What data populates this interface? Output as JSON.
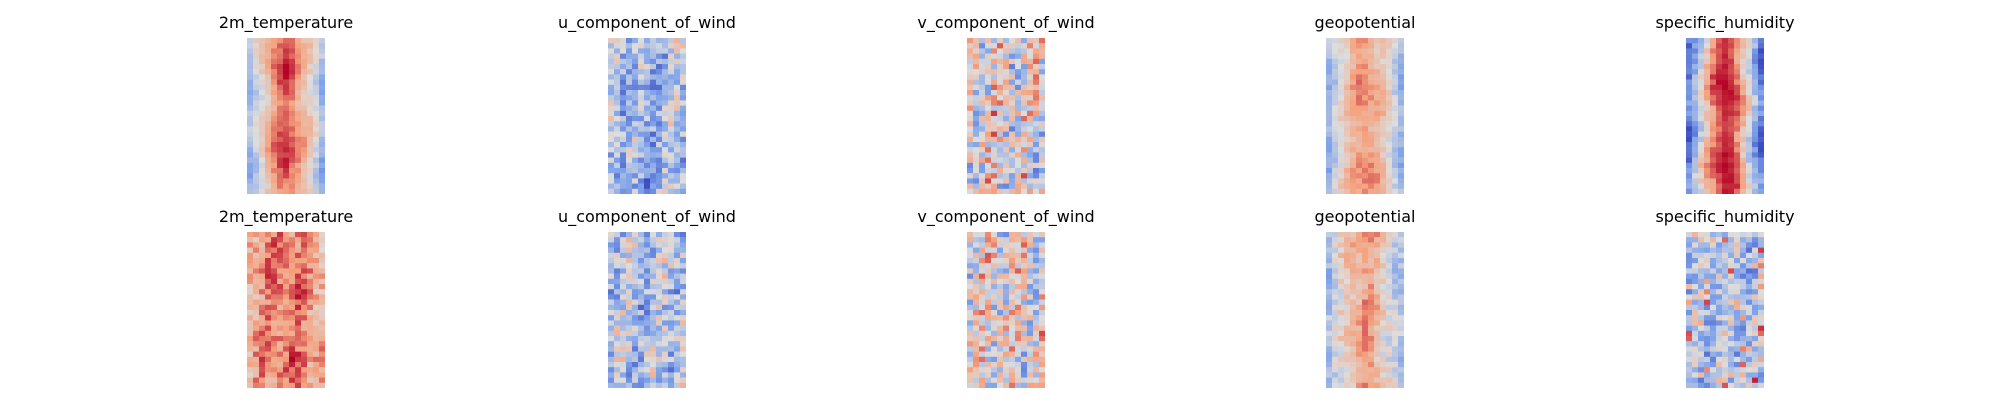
{
  "chart_data": [
    {
      "type": "heatmap",
      "title": "2m_temperature",
      "colormap": "coolwarm",
      "pattern": "warm-center band, cooler edges",
      "center_level": 0.88,
      "edge_level": 0.28,
      "noise": 0.05,
      "wave": 0.07
    },
    {
      "type": "heatmap",
      "title": "u_component_of_wind",
      "colormap": "coolwarm",
      "pattern": "mostly cool with streaks",
      "center_level": 0.3,
      "edge_level": 0.42,
      "noise": 0.18,
      "wave": 0.04
    },
    {
      "type": "heatmap",
      "title": "v_component_of_wind",
      "colormap": "coolwarm",
      "pattern": "speckled mixed",
      "center_level": 0.52,
      "edge_level": 0.52,
      "noise": 0.26,
      "wave": 0.02
    },
    {
      "type": "heatmap",
      "title": "geopotential",
      "colormap": "coolwarm",
      "pattern": "warm center band with cool sides",
      "center_level": 0.78,
      "edge_level": 0.3,
      "noise": 0.06,
      "wave": 0.05
    },
    {
      "type": "heatmap",
      "title": "specific_humidity",
      "colormap": "coolwarm",
      "pattern": "narrow hot core, deep cool edges",
      "center_level": 0.92,
      "edge_level": 0.08,
      "noise": 0.08,
      "wave": 0.1
    },
    {
      "type": "heatmap",
      "title": "2m_temperature",
      "colormap": "coolwarm",
      "pattern": "noisy warm field",
      "center_level": 0.82,
      "edge_level": 0.68,
      "noise": 0.12,
      "wave": 0.03
    },
    {
      "type": "heatmap",
      "title": "u_component_of_wind",
      "colormap": "coolwarm",
      "pattern": "light cool with sparse warm streaks",
      "center_level": 0.38,
      "edge_level": 0.42,
      "noise": 0.2,
      "wave": 0.03
    },
    {
      "type": "heatmap",
      "title": "v_component_of_wind",
      "colormap": "coolwarm",
      "pattern": "speckled mixed",
      "center_level": 0.53,
      "edge_level": 0.53,
      "noise": 0.24,
      "wave": 0.02
    },
    {
      "type": "heatmap",
      "title": "geopotential",
      "colormap": "coolwarm",
      "pattern": "warm band with cool sides",
      "center_level": 0.74,
      "edge_level": 0.32,
      "noise": 0.09,
      "wave": 0.04
    },
    {
      "type": "heatmap",
      "title": "specific_humidity",
      "colormap": "coolwarm",
      "pattern": "cool field with warm dots",
      "center_level": 0.4,
      "edge_level": 0.34,
      "noise": 0.18,
      "wave": 0.02
    }
  ]
}
